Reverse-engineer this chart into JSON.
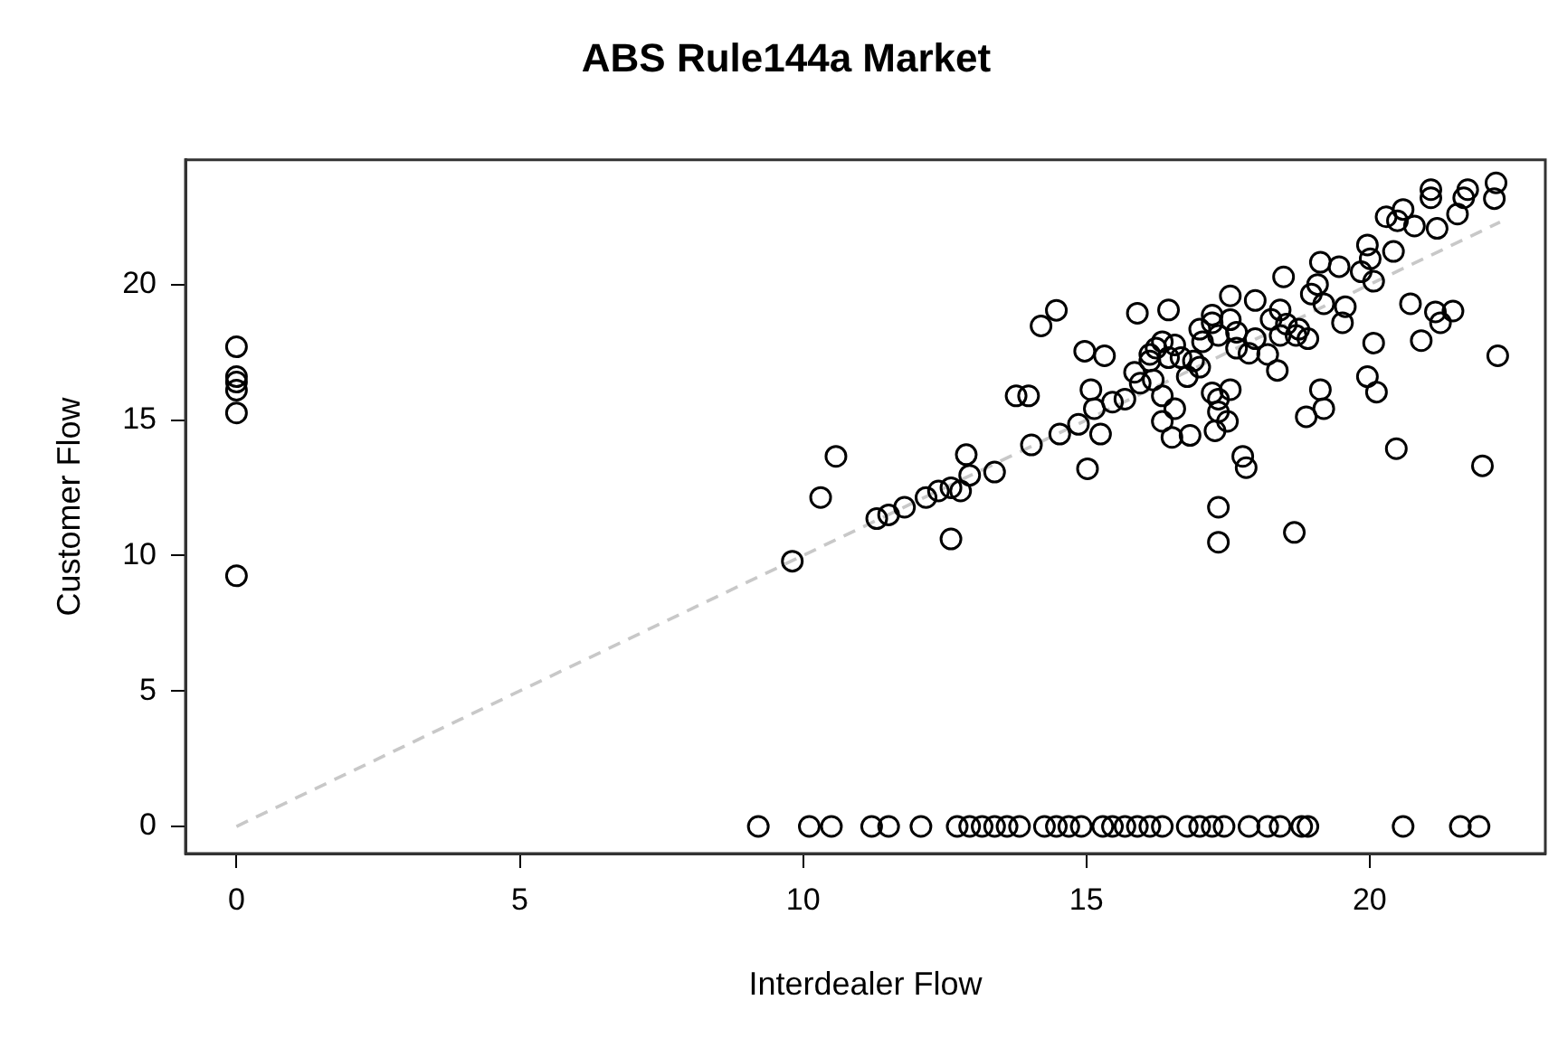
{
  "chart_data": {
    "type": "scatter",
    "title": "ABS Rule144a Market",
    "xlabel": "Interdealer Flow",
    "ylabel": "Customer Flow",
    "xlim": [
      -0.9,
      23.1
    ],
    "ylim": [
      -1,
      24.6
    ],
    "xticks": [
      0,
      5,
      10,
      15,
      20
    ],
    "yticks": [
      0,
      5,
      10,
      15,
      20
    ],
    "grid": false,
    "legend": false,
    "marker": "circle",
    "series": [
      {
        "color": "#000000",
        "x": [
          22.23,
          22.2,
          21.73,
          21.66,
          21.55,
          21.08,
          21.08,
          21.19,
          20.59,
          20.29,
          20.49,
          20.79,
          20.42,
          19.96,
          20.01,
          19.85,
          20.07,
          19.46,
          19.13,
          19.08,
          18.97,
          19.19,
          19.57,
          19.52,
          18.48,
          17.98,
          17.54,
          18.42,
          18.26,
          18.53,
          18.7,
          18.91,
          18.37,
          17.22,
          17.54,
          17.33,
          17.0,
          17.05,
          17.65,
          17.87,
          18.2,
          16.89,
          17.0,
          16.56,
          16.23,
          16.45,
          16.12,
          16.67,
          16.78,
          15.9,
          16.45,
          14.97,
          15.32,
          15.85,
          16.18,
          16.34,
          16.56,
          16.34,
          16.51,
          16.83,
          17.27,
          17.33,
          17.49,
          17.33,
          17.54,
          17.22,
          17.76,
          17.82,
          17.33,
          17.33,
          18.67,
          12.61,
          9.81,
          14.2,
          14.47,
          13.76,
          13.98,
          15.08,
          15.14,
          15.25,
          14.86,
          14.53,
          14.03,
          15.02,
          15.46,
          15.68,
          15.95,
          22.26,
          21.99,
          20.47,
          20.72,
          21.16,
          21.25,
          21.47,
          20.91,
          20.07,
          19.96,
          20.12,
          19.13,
          19.19,
          18.88,
          10.58,
          10.31,
          11.3,
          11.51,
          11.79,
          12.17,
          12.39,
          12.61,
          12.88,
          12.78,
          12.94,
          13.38,
          16.12,
          16.34,
          17.22,
          17.65,
          17.98,
          18.42,
          18.75,
          0,
          0,
          0,
          0,
          0,
          0,
          9.21,
          10.11,
          10.5,
          11.21,
          11.51,
          12.08,
          12.72,
          12.94,
          13.16,
          13.38,
          13.6,
          13.82,
          14.26,
          14.47,
          14.69,
          14.91,
          15.29,
          15.46,
          15.68,
          15.9,
          16.12,
          16.34,
          16.78,
          17.0,
          17.22,
          17.43,
          17.87,
          18.2,
          18.42,
          18.8,
          18.91,
          20.59,
          21.6,
          21.93
        ],
        "values": [
          23.75,
          23.17,
          23.5,
          23.2,
          22.6,
          23.5,
          23.2,
          22.07,
          22.77,
          22.5,
          22.35,
          22.16,
          21.22,
          21.46,
          20.95,
          20.47,
          20.12,
          20.66,
          20.82,
          20.0,
          19.65,
          19.29,
          19.18,
          18.59,
          20.28,
          19.41,
          19.58,
          19.06,
          18.71,
          18.54,
          18.12,
          18.0,
          16.83,
          18.87,
          18.7,
          18.12,
          18.35,
          17.89,
          17.65,
          17.46,
          17.42,
          17.18,
          16.95,
          17.77,
          17.65,
          17.3,
          17.18,
          17.3,
          16.6,
          18.94,
          19.06,
          17.54,
          17.37,
          16.76,
          16.48,
          15.89,
          15.42,
          14.95,
          14.36,
          14.43,
          14.6,
          15.3,
          14.95,
          15.77,
          16.12,
          16.0,
          13.66,
          13.24,
          11.78,
          10.49,
          10.85,
          10.61,
          9.79,
          18.47,
          19.05,
          15.89,
          15.89,
          16.12,
          15.42,
          14.48,
          14.84,
          14.48,
          14.08,
          13.2,
          15.66,
          15.77,
          16.36,
          17.37,
          13.31,
          13.94,
          19.29,
          18.99,
          18.59,
          19.02,
          17.93,
          17.84,
          16.6,
          16.03,
          16.12,
          15.42,
          15.12,
          13.66,
          12.14,
          11.36,
          11.5,
          11.78,
          12.14,
          12.38,
          12.5,
          13.72,
          12.38,
          12.96,
          13.08,
          17.42,
          17.89,
          18.59,
          18.24,
          18.0,
          18.12,
          18.35,
          17.7,
          16.6,
          16.4,
          16.1,
          15.26,
          9.25,
          0,
          0,
          0,
          0,
          0,
          0,
          0,
          0,
          0,
          0,
          0,
          0,
          0,
          0,
          0,
          0,
          0,
          0,
          0,
          0,
          0,
          0,
          0,
          0,
          0,
          0,
          0,
          0,
          0,
          0,
          0,
          0,
          0,
          0
        ]
      },
      {
        "type": "line",
        "color": "#c8c8c8",
        "line_style": "dashed",
        "marker": "none",
        "x": [
          0,
          22.3
        ],
        "values": [
          0,
          22.3
        ]
      }
    ]
  }
}
